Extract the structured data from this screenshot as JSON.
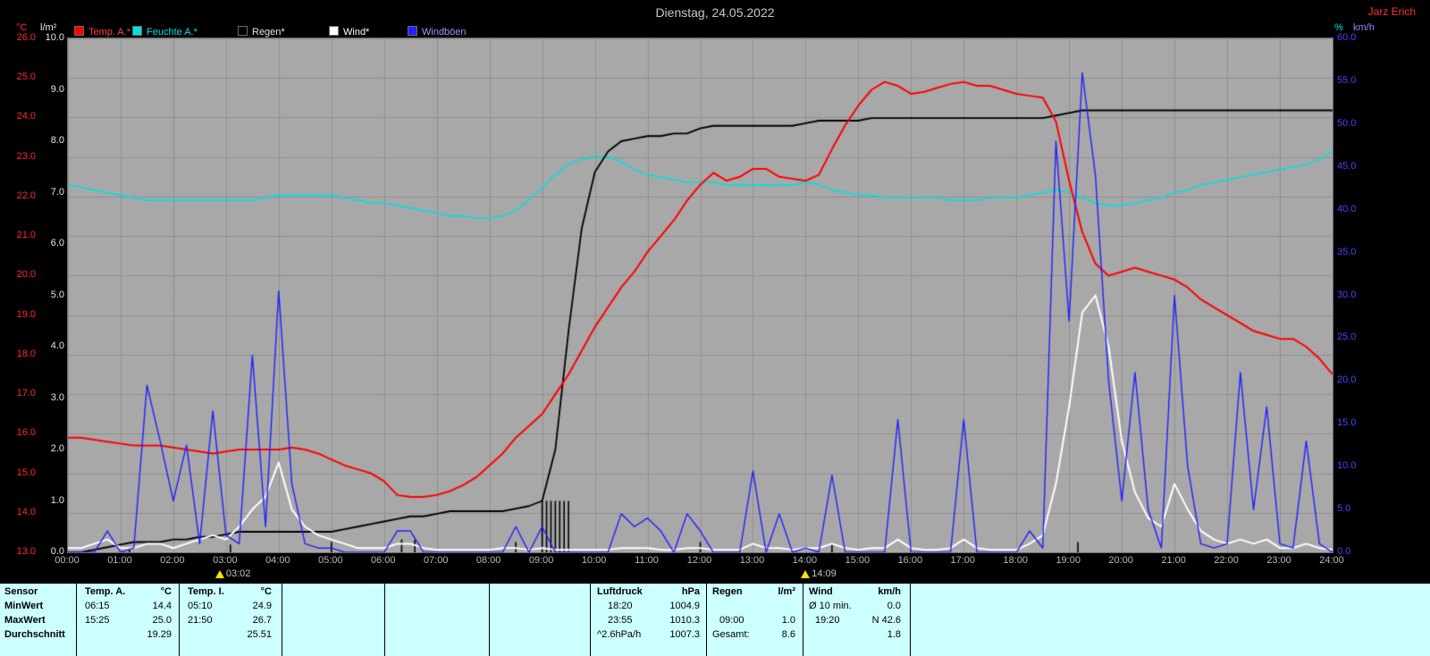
{
  "header": {
    "title": "Dienstag, 24.05.2022",
    "watermark": "Jarz Erich"
  },
  "colors": {
    "temp": "#ff2a2a",
    "humidity": "#00e0e0",
    "rain": "#000000",
    "wind": "#ffffff",
    "gusts": "#2020ff",
    "plot_bg": "#a8a8a8",
    "grid": "#909090",
    "panel_bg": "#ccffff",
    "marker": "#ffe000",
    "wind_axis_labels": "#4646ff",
    "rain_axis_labels": "#e6e6e6"
  },
  "legend": [
    {
      "label": "Temp. A.*",
      "color": "#ff0000",
      "text_color": "#ff4040"
    },
    {
      "label": "Feuchte A.*",
      "color": "#00e0e0",
      "text_color": "#00e0e0"
    },
    {
      "label": "Regen*",
      "color": "#000000",
      "text_color": "#e8e8e8"
    },
    {
      "label": "Wind*",
      "color": "#ffffff",
      "text_color": "#ffffff"
    },
    {
      "label": "Windböen",
      "color": "#2020ff",
      "text_color": "#9b9bff"
    }
  ],
  "axes": {
    "left_temp": {
      "unit": "°C",
      "ticks": [
        "26.0",
        "25.0",
        "24.0",
        "23.0",
        "22.0",
        "21.0",
        "20.0",
        "19.0",
        "18.0",
        "17.0",
        "16.0",
        "15.0",
        "14.0",
        "13.0"
      ]
    },
    "left_rain": {
      "unit": "l/m²",
      "ticks": [
        "10.0",
        "9.0",
        "8.0",
        "7.0",
        "6.0",
        "5.0",
        "4.0",
        "3.0",
        "2.0",
        "1.0",
        "0.0"
      ]
    },
    "right_wind": {
      "unit": "km/h",
      "ticks": [
        "60.0",
        "55.0",
        "50.0",
        "45.0",
        "40.0",
        "35.0",
        "30.0",
        "25.0",
        "20.0",
        "15.0",
        "10.0",
        "5.0",
        "0.0"
      ]
    },
    "right_percent": {
      "unit": "%"
    },
    "x": {
      "labels": [
        "00:00",
        "01:00",
        "02:00",
        "03:00",
        "04:00",
        "05:00",
        "06:00",
        "07:00",
        "08:00",
        "09:00",
        "10:00",
        "11:00",
        "12:00",
        "13:00",
        "14:00",
        "15:00",
        "16:00",
        "17:00",
        "18:00",
        "19:00",
        "20:00",
        "21:00",
        "22:00",
        "23:00",
        "24:00"
      ]
    }
  },
  "markers": [
    {
      "label": "03:02",
      "minute": 182
    },
    {
      "label": "14:09",
      "minute": 849
    }
  ],
  "chart_data": {
    "type": "line",
    "title": "Dienstag, 24.05.2022",
    "legend_position": "top",
    "x_unit": "minutes",
    "step_minutes": 15,
    "axis_ranges": {
      "temp": [
        13,
        26
      ],
      "rain": [
        0,
        10
      ],
      "wind": [
        0,
        60
      ],
      "percent": [
        0,
        100
      ]
    },
    "series": [
      {
        "name": "Temp. A.",
        "unit": "°C",
        "axis": "temp",
        "color": "#ff0000",
        "values": [
          15.9,
          15.9,
          15.85,
          15.8,
          15.75,
          15.7,
          15.7,
          15.7,
          15.65,
          15.6,
          15.55,
          15.5,
          15.55,
          15.6,
          15.6,
          15.6,
          15.6,
          15.65,
          15.6,
          15.5,
          15.35,
          15.2,
          15.1,
          15.0,
          14.8,
          14.45,
          14.4,
          14.4,
          14.45,
          14.55,
          14.7,
          14.9,
          15.2,
          15.5,
          15.9,
          16.2,
          16.5,
          17.0,
          17.5,
          18.1,
          18.7,
          19.2,
          19.7,
          20.1,
          20.6,
          21.0,
          21.4,
          21.9,
          22.3,
          22.6,
          22.4,
          22.5,
          22.7,
          22.7,
          22.5,
          22.45,
          22.4,
          22.55,
          23.2,
          23.8,
          24.3,
          24.7,
          24.9,
          24.8,
          24.6,
          24.65,
          24.75,
          24.85,
          24.9,
          24.8,
          24.8,
          24.7,
          24.6,
          24.55,
          24.5,
          23.9,
          22.4,
          21.1,
          20.3,
          20.0,
          20.1,
          20.2,
          20.1,
          20.0,
          19.9,
          19.7,
          19.4,
          19.2,
          19.0,
          18.8,
          18.6,
          18.5,
          18.4,
          18.4,
          18.2,
          17.9,
          17.5
        ]
      },
      {
        "name": "Feuchte A.",
        "unit": "%",
        "axis": "percent",
        "color": "#00e0e0",
        "values": [
          71.5,
          71,
          70.5,
          70,
          69.5,
          69,
          68.5,
          68.5,
          68.5,
          68.5,
          68.5,
          68.5,
          68.5,
          68.5,
          68.5,
          69,
          69.5,
          69.5,
          69.5,
          69.5,
          69.5,
          69,
          68.5,
          68,
          68,
          67.5,
          67,
          66.5,
          66,
          65.5,
          65.5,
          65,
          65,
          65.5,
          66.5,
          68.5,
          71,
          73.5,
          75.5,
          76.5,
          77,
          77,
          76,
          74.5,
          73.5,
          73,
          72.5,
          72,
          72,
          72,
          71.5,
          71.5,
          71.5,
          71.5,
          71.5,
          71.5,
          72,
          71.5,
          70.5,
          70,
          69.5,
          69.5,
          69,
          69,
          69,
          69,
          69,
          68.5,
          68.5,
          68.5,
          69,
          69,
          69,
          69.5,
          70,
          70.5,
          70,
          69,
          68,
          67.5,
          67.5,
          68,
          68.5,
          69,
          70,
          70.5,
          71.5,
          72,
          72.5,
          73,
          73.5,
          74,
          74.5,
          75,
          75.5,
          76.5,
          78
        ]
      },
      {
        "name": "Regen",
        "unit": "l/m²",
        "axis": "rain",
        "color": "#000000",
        "values": [
          0,
          0,
          0.05,
          0.1,
          0.15,
          0.2,
          0.2,
          0.2,
          0.25,
          0.25,
          0.3,
          0.3,
          0.35,
          0.4,
          0.4,
          0.4,
          0.4,
          0.4,
          0.4,
          0.4,
          0.4,
          0.45,
          0.5,
          0.55,
          0.6,
          0.65,
          0.7,
          0.7,
          0.75,
          0.8,
          0.8,
          0.8,
          0.8,
          0.8,
          0.85,
          0.9,
          1.0,
          2.0,
          4.3,
          6.3,
          7.4,
          7.8,
          8.0,
          8.05,
          8.1,
          8.1,
          8.15,
          8.15,
          8.25,
          8.3,
          8.3,
          8.3,
          8.3,
          8.3,
          8.3,
          8.3,
          8.35,
          8.4,
          8.4,
          8.4,
          8.4,
          8.45,
          8.45,
          8.45,
          8.45,
          8.45,
          8.45,
          8.45,
          8.45,
          8.45,
          8.45,
          8.45,
          8.45,
          8.45,
          8.45,
          8.5,
          8.55,
          8.6,
          8.6,
          8.6,
          8.6,
          8.6,
          8.6,
          8.6,
          8.6,
          8.6,
          8.6,
          8.6,
          8.6,
          8.6,
          8.6,
          8.6,
          8.6,
          8.6,
          8.6,
          8.6,
          8.6
        ]
      },
      {
        "name": "Wind",
        "unit": "km/h",
        "axis": "wind",
        "color": "#ffffff",
        "values": [
          0.5,
          0.5,
          1,
          1.5,
          0.5,
          0.5,
          1,
          1,
          0.5,
          1,
          1.5,
          2,
          1.5,
          3,
          5,
          6.5,
          10.5,
          5,
          3,
          2,
          1.5,
          1,
          0.5,
          0.5,
          0.5,
          1,
          1,
          0.5,
          0.3,
          0.3,
          0.3,
          0.3,
          0.3,
          0.5,
          0.5,
          0.3,
          0.5,
          0.3,
          0.3,
          0.3,
          0.3,
          0.3,
          0.5,
          0.5,
          0.5,
          0.3,
          0.3,
          0.5,
          0.5,
          0.3,
          0.3,
          0.3,
          1,
          0.5,
          0.5,
          0.3,
          0.5,
          0.5,
          1,
          0.5,
          0.3,
          0.5,
          0.5,
          1.5,
          0.5,
          0.3,
          0.3,
          0.5,
          1.5,
          0.5,
          0.3,
          0.3,
          0.3,
          1,
          2,
          8,
          17,
          28,
          30,
          24,
          13,
          7,
          4,
          3,
          8,
          5,
          2.5,
          1.5,
          1,
          1.5,
          1,
          1.5,
          0.5,
          0.5,
          1,
          0.5,
          0.3
        ]
      },
      {
        "name": "Windböen",
        "unit": "km/h",
        "axis": "wind",
        "color": "#2020ff",
        "values": [
          0,
          0,
          0,
          2.5,
          0,
          0.5,
          19.5,
          13,
          6,
          12.5,
          1,
          16.5,
          2,
          1,
          23,
          3,
          30.5,
          8,
          1,
          0.5,
          0.5,
          0,
          0,
          0,
          0,
          2.5,
          2.5,
          0,
          0,
          0,
          0,
          0,
          0,
          0,
          3,
          0,
          3,
          0,
          0,
          0,
          0,
          0,
          4.5,
          3,
          4,
          2.5,
          0,
          4.5,
          2.5,
          0,
          0,
          0,
          9.5,
          0,
          4.5,
          0,
          0.5,
          0,
          9,
          0,
          0,
          0,
          0,
          15.5,
          0,
          0,
          0,
          0,
          15.5,
          0,
          0,
          0,
          0,
          2.5,
          0.5,
          48,
          27,
          56,
          44,
          20,
          6,
          21,
          5,
          0.5,
          30,
          10,
          1,
          0.5,
          1,
          21,
          5,
          17,
          1,
          0.5,
          13,
          1,
          0
        ]
      }
    ],
    "rain_rate_bars": {
      "color": "#000000",
      "axis": "rain",
      "bars": [
        {
          "minute": 70,
          "value": 0.1
        },
        {
          "minute": 185,
          "value": 0.15
        },
        {
          "minute": 300,
          "value": 0.2
        },
        {
          "minute": 380,
          "value": 0.25
        },
        {
          "minute": 395,
          "value": 0.25
        },
        {
          "minute": 510,
          "value": 0.2
        },
        {
          "minute": 540,
          "value": 1.0
        },
        {
          "minute": 545,
          "value": 1.0
        },
        {
          "minute": 550,
          "value": 1.0
        },
        {
          "minute": 555,
          "value": 1.0
        },
        {
          "minute": 560,
          "value": 1.0
        },
        {
          "minute": 565,
          "value": 1.0
        },
        {
          "minute": 570,
          "value": 1.0
        },
        {
          "minute": 720,
          "value": 0.2
        },
        {
          "minute": 870,
          "value": 0.15
        },
        {
          "minute": 1150,
          "value": 0.2
        }
      ]
    }
  },
  "table": {
    "row_labels": {
      "header": "Sensor",
      "min": "MinWert",
      "max": "MaxWert",
      "avg": "Durchschnitt"
    },
    "temp_a": {
      "title": "Temp. A.",
      "unit": "°C",
      "min_time": "06:15",
      "min_value": "14.4",
      "max_time": "15:25",
      "max_value": "25.0",
      "avg_value": "19.29"
    },
    "temp_i": {
      "title": "Temp. I.",
      "unit": "°C",
      "min_time": "05:10",
      "min_value": "24.9",
      "max_time": "21:50",
      "max_value": "26.7",
      "avg_value": "25.51"
    },
    "luftdruck": {
      "title": "Luftdruck",
      "unit": "hPa",
      "min_time": "18:20",
      "min_value": "1004.9",
      "max_time": "23:55",
      "max_value": "1010.3",
      "avg_label": "^2.6hPa/h",
      "avg_value": "1007.3"
    },
    "regen": {
      "title": "Regen",
      "unit": "l/m²",
      "max_time": "09:00",
      "max_value": "1.0",
      "total_label": "Gesamt:",
      "total_value": "8.6"
    },
    "wind": {
      "title": "Wind",
      "unit": "km/h",
      "min_label": "Ø 10 min.",
      "min_value": "0.0",
      "max_time": "19:20",
      "max_value": "N 42.6",
      "avg_value": "1.8"
    }
  }
}
